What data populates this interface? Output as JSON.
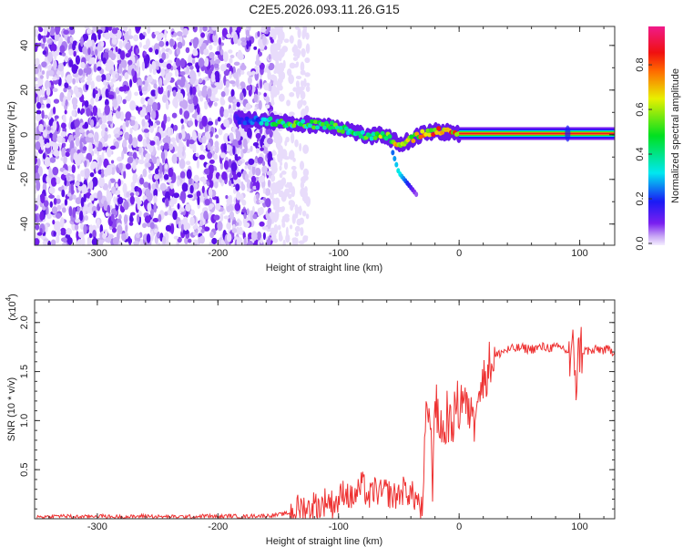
{
  "chart_data": [
    {
      "type": "heatmap",
      "title": "C2E5.2026.093.11.26.G15",
      "xlabel": "Height of straight line (km)",
      "ylabel": "Frequency (Hz)",
      "xlim": [
        -352,
        129
      ],
      "ylim": [
        -49.5,
        48.5
      ],
      "xticks": [
        -300,
        -200,
        -100,
        0,
        100
      ],
      "yticks": [
        -40,
        -20,
        0,
        20,
        40
      ],
      "colorbar": {
        "label": "Normalized spectral amplitude",
        "range": [
          0,
          1
        ],
        "ticks": [
          "0.0",
          "0.2",
          "0.4",
          "0.6",
          "0.8"
        ]
      },
      "noise_region_end_km": -155,
      "ridge": [
        {
          "height": -185,
          "freq": 7,
          "amp": 0.15
        },
        {
          "height": -170,
          "freq": 6.5,
          "amp": 0.3
        },
        {
          "height": -155,
          "freq": 6,
          "amp": 0.45
        },
        {
          "height": -140,
          "freq": 5,
          "amp": 0.55
        },
        {
          "height": -120,
          "freq": 4.5,
          "amp": 0.55
        },
        {
          "height": -105,
          "freq": 4,
          "amp": 0.55
        },
        {
          "height": -90,
          "freq": 2,
          "amp": 0.5
        },
        {
          "height": -75,
          "freq": -1,
          "amp": 0.55
        },
        {
          "height": -62,
          "freq": 0,
          "amp": 0.65
        },
        {
          "height": -50,
          "freq": -4,
          "amp": 0.7
        },
        {
          "height": -42,
          "freq": -3,
          "amp": 0.8
        },
        {
          "height": -32,
          "freq": 0,
          "amp": 0.8
        },
        {
          "height": -20,
          "freq": 1.5,
          "amp": 0.85
        },
        {
          "height": -8,
          "freq": 1,
          "amp": 0.85
        },
        {
          "height": 0,
          "freq": 0.5,
          "amp": 0.9
        },
        {
          "height": 129,
          "freq": 0.5,
          "amp": 0.9
        }
      ],
      "branch": [
        {
          "height": -55,
          "freq": -8,
          "amp": 0.25
        },
        {
          "height": -50,
          "freq": -17,
          "amp": 0.35
        },
        {
          "height": -35,
          "freq": -27,
          "amp": 0.05
        }
      ]
    },
    {
      "type": "line",
      "xlabel": "Height of straight line (km)",
      "ylabel": "SNR (10 * v/v)",
      "y_exponent_label": "(x10",
      "y_exponent_power": "4",
      "xlim": [
        -352,
        129
      ],
      "ylim": [
        0,
        2.23
      ],
      "xticks": [
        -300,
        -200,
        -100,
        0,
        100
      ],
      "yticks": [
        "0.5",
        "1.0",
        "1.5",
        "2.0"
      ],
      "series": [
        {
          "name": "SNR",
          "color": "#ee3333",
          "x": [
            -350,
            -340,
            -330,
            -320,
            -310,
            -300,
            -290,
            -280,
            -270,
            -260,
            -250,
            -240,
            -230,
            -220,
            -210,
            -200,
            -190,
            -180,
            -170,
            -160,
            -150,
            -140,
            -135,
            -130,
            -125,
            -120,
            -115,
            -110,
            -105,
            -100,
            -95,
            -90,
            -85,
            -80,
            -75,
            -70,
            -65,
            -60,
            -55,
            -50,
            -45,
            -40,
            -35,
            -30,
            -28,
            -25,
            -22,
            -20,
            -17,
            -15,
            -12,
            -10,
            -7,
            -5,
            -2,
            0,
            3,
            5,
            8,
            10,
            12,
            15,
            18,
            20,
            25,
            30,
            35,
            40,
            50,
            60,
            70,
            80,
            85,
            90,
            93,
            95,
            97,
            100,
            103,
            105,
            110,
            115,
            120,
            125,
            129
          ],
          "y": [
            0.02,
            0.02,
            0.03,
            0.02,
            0.02,
            0.03,
            0.02,
            0.02,
            0.02,
            0.03,
            0.02,
            0.02,
            0.02,
            0.02,
            0.03,
            0.02,
            0.03,
            0.02,
            0.03,
            0.03,
            0.04,
            0.06,
            0.1,
            0.12,
            0.1,
            0.15,
            0.12,
            0.2,
            0.15,
            0.18,
            0.3,
            0.2,
            0.25,
            0.35,
            0.2,
            0.3,
            0.25,
            0.28,
            0.22,
            0.25,
            0.3,
            0.25,
            0.2,
            0.05,
            0.9,
            1.2,
            0.4,
            1.3,
            0.9,
            1.0,
            0.8,
            1.1,
            0.9,
            1.0,
            1.2,
            1.1,
            1.3,
            1.2,
            1.0,
            1.3,
            0.9,
            1.4,
            1.3,
            1.4,
            1.58,
            1.65,
            1.7,
            1.72,
            1.74,
            1.73,
            1.75,
            1.74,
            1.75,
            1.7,
            1.5,
            1.8,
            1.4,
            1.75,
            1.7,
            1.72,
            1.7,
            1.73,
            1.72,
            1.72,
            1.7
          ]
        }
      ]
    }
  ]
}
